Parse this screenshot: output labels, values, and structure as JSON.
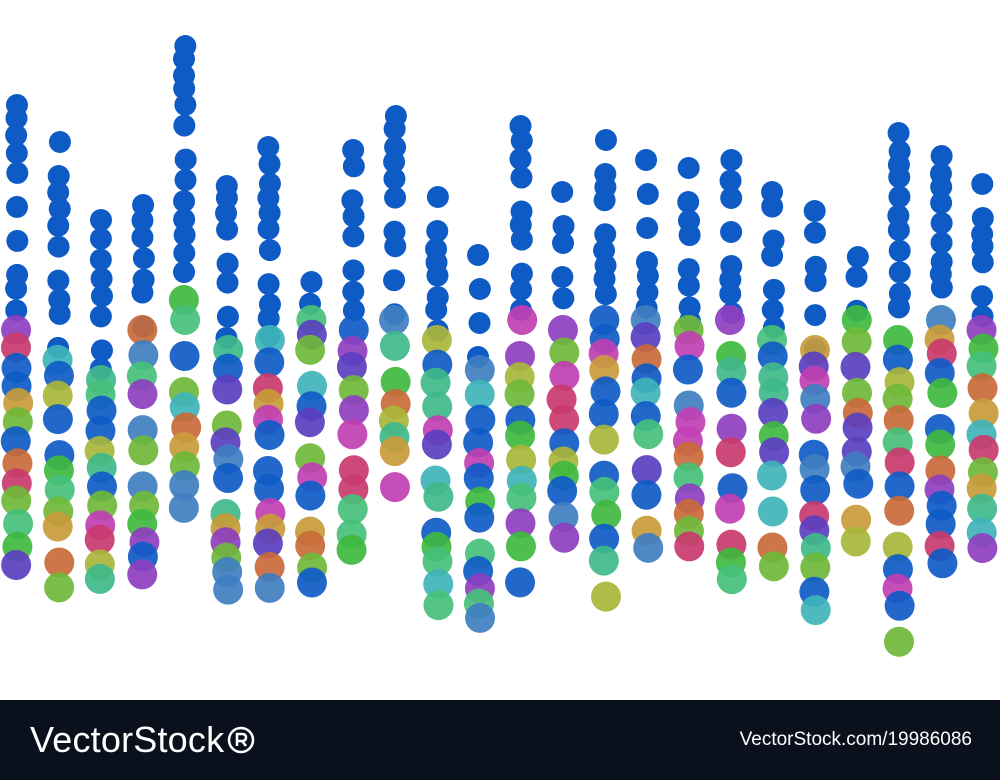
{
  "artwork": {
    "palette": {
      "primary": "#0f5bc6",
      "mixed": [
        "#3fb83f",
        "#6fb83a",
        "#a9b63a",
        "#c89b3a",
        "#c86a3a",
        "#c93a6e",
        "#c03fb3",
        "#8e3fbf",
        "#5b3fbf",
        "#3f7ec0",
        "#3fb3b8",
        "#3fb88a",
        "#45c07a"
      ]
    },
    "pattern": "vertical-dot-columns"
  },
  "footer": {
    "brand": "VectorStock",
    "brand_logo_icon": "registered-trademark-icon",
    "image_id": "VectorStock.com/19986086"
  }
}
